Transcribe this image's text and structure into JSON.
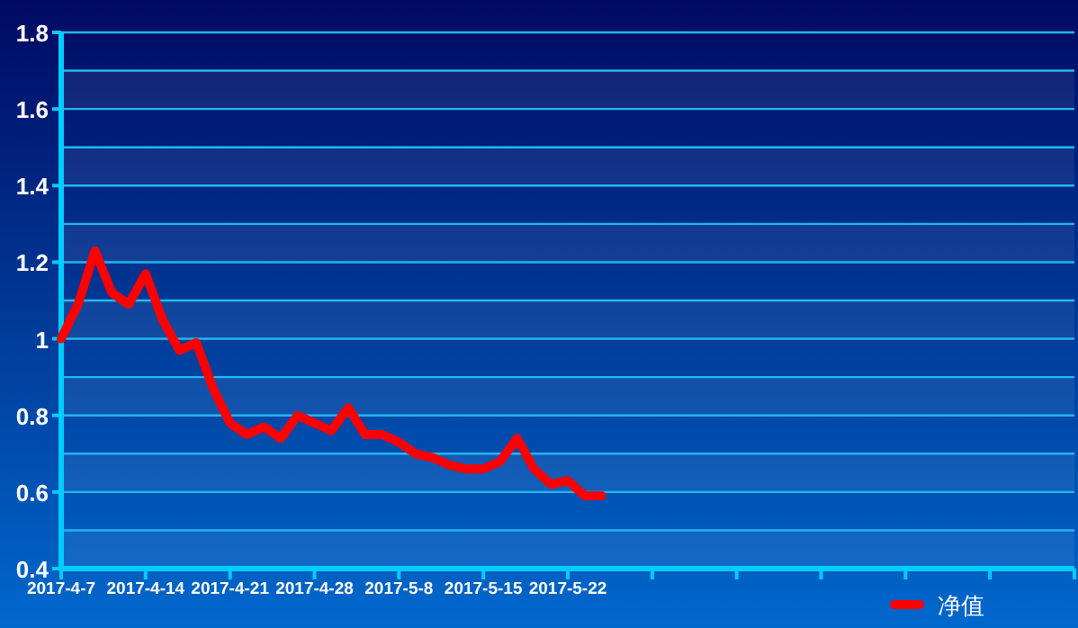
{
  "chart_data": {
    "type": "line",
    "categories": [
      "2017-4-7",
      null,
      null,
      null,
      null,
      "2017-4-14",
      null,
      null,
      null,
      null,
      "2017-4-21",
      null,
      null,
      null,
      null,
      "2017-4-28",
      null,
      null,
      null,
      null,
      "2017-5-8",
      null,
      null,
      null,
      null,
      "2017-5-15",
      null,
      null,
      null,
      null,
      "2017-5-22",
      null,
      null,
      null,
      null,
      null,
      null,
      null,
      null,
      null,
      null,
      null,
      null,
      null,
      null,
      null,
      null,
      null,
      null,
      null,
      null,
      null,
      null,
      null,
      null,
      null,
      null,
      null,
      null,
      null,
      null
    ],
    "series": [
      {
        "name": "净值",
        "color": "#ff0000",
        "values": [
          1.0,
          1.09,
          1.23,
          1.12,
          1.09,
          1.17,
          1.05,
          0.97,
          0.99,
          0.87,
          0.78,
          0.75,
          0.77,
          0.74,
          0.8,
          0.78,
          0.76,
          0.82,
          0.75,
          0.75,
          0.73,
          0.7,
          0.69,
          0.67,
          0.66,
          0.66,
          0.68,
          0.74,
          0.66,
          0.62,
          0.63,
          0.59,
          0.59,
          null,
          null,
          null,
          null,
          null,
          null,
          null,
          null,
          null,
          null,
          null,
          null,
          null,
          null,
          null,
          null,
          null,
          null,
          null,
          null,
          null,
          null,
          null,
          null,
          null,
          null,
          null,
          null
        ]
      }
    ],
    "ylim": [
      0.4,
      1.8
    ],
    "yticks": [
      0.4,
      {
        "value": 0.5,
        "label": null
      },
      0.6,
      {
        "value": 0.7,
        "label": null
      },
      0.8,
      {
        "value": 0.9,
        "label": null
      },
      1,
      {
        "value": 1.1,
        "label": null
      },
      1.2,
      {
        "value": 1.3,
        "label": null
      },
      1.4,
      {
        "value": 1.5,
        "label": null
      },
      1.6,
      {
        "value": 1.7,
        "label": null
      },
      1.8
    ],
    "grid": "y",
    "legend": "bottom right",
    "marker": "none",
    "line_style": "solid"
  }
}
